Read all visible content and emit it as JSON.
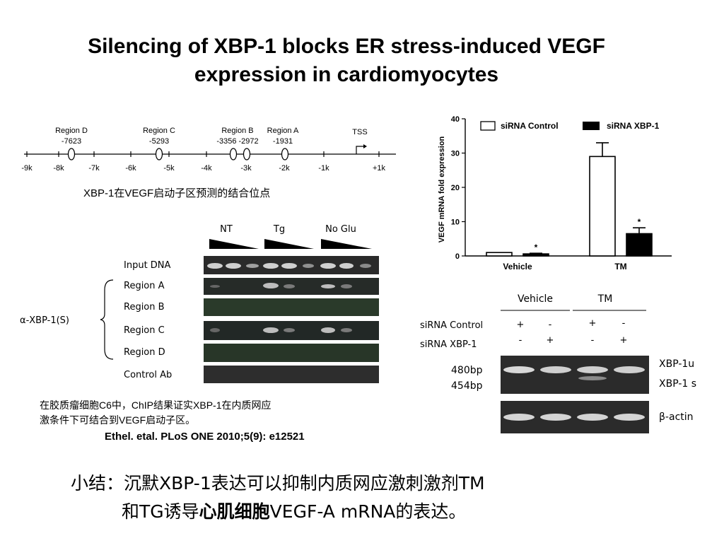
{
  "title_line1": "Silencing of XBP-1 blocks ER stress-induced VEGF",
  "title_line2": "expression in cardiomyocytes",
  "promoter": {
    "regions": [
      {
        "name": "Region D",
        "pos": "-7623"
      },
      {
        "name": "Region C",
        "pos": "-5293"
      },
      {
        "name": "Region B",
        "pos": "-3356 -2972"
      },
      {
        "name": "Region A",
        "pos": "-1931"
      }
    ],
    "tss_label": "TSS",
    "ticks": [
      "-9k",
      "-8k",
      "-7k",
      "-6k",
      "-5k",
      "-4k",
      "-3k",
      "-2k",
      "-1k",
      "+1k"
    ],
    "caption": "XBP-1在VEGF启动子区预测的结合位点"
  },
  "chip": {
    "conditions": [
      "NT",
      "Tg",
      "No Glu"
    ],
    "rows": [
      "Input DNA",
      "Region A",
      "Region B",
      "Region C",
      "Region D",
      "Control Ab"
    ],
    "antibody_label": "α-XBP-1(S)",
    "note_line1": "在胶质瘤细胞C6中，ChIP结果证实XBP-1在内质网应",
    "note_line2": "激条件下可结合到VEGF启动子区。",
    "citation": "Ethel. etal. PLoS ONE 2010;5(9): e12521"
  },
  "chart_data": {
    "type": "bar",
    "categories": [
      "Vehicle",
      "TM"
    ],
    "series": [
      {
        "name": "siRNA Control",
        "values": [
          1,
          29
        ],
        "errors": [
          0,
          4
        ],
        "color": "#ffffff"
      },
      {
        "name": "siRNA XBP-1",
        "values": [
          0.6,
          6.5
        ],
        "errors": [
          0.2,
          1.7
        ],
        "color": "#000000"
      }
    ],
    "significance": [
      "*",
      "*"
    ],
    "ylabel": "VEGF mRNA fold expression",
    "ylim": [
      0,
      40
    ],
    "yticks": [
      "0",
      "10",
      "20",
      "30",
      "40"
    ],
    "legend": "top-right"
  },
  "rtpcr": {
    "groups": [
      "Vehicle",
      "TM"
    ],
    "row_labels": [
      "siRNA Control",
      "siRNA XBP-1"
    ],
    "row_control_signs": [
      "+",
      "-",
      "+",
      "-"
    ],
    "row_xbp1_signs": [
      "-",
      "+",
      "-",
      "+"
    ],
    "sizes": [
      "480bp",
      "454bp"
    ],
    "bands": [
      "XBP-1u",
      "XBP-1 s",
      "β-actin"
    ]
  },
  "summary": {
    "line1": "小结：沉默XBP-1表达可以抑制内质网应激刺激剂TM",
    "line2_prefix": "和TG诱导",
    "line2_bold": "心肌细胞",
    "line2_suffix": "VEGF-A mRNA的表达。"
  }
}
